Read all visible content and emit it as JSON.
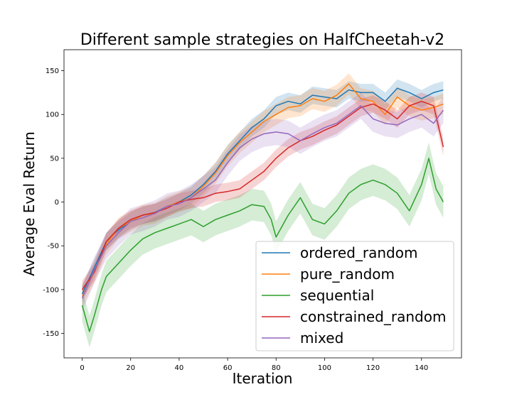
{
  "chart_data": {
    "type": "line",
    "title": "Different sample strategies on HalfCheetah-v2",
    "xlabel": "Iteration",
    "ylabel": "Average Eval Return",
    "xlim": [
      -7.5,
      156.5
    ],
    "ylim": [
      -178,
      174
    ],
    "xticks": [
      0,
      20,
      40,
      60,
      80,
      100,
      120,
      140
    ],
    "yticks": [
      -150,
      -100,
      -50,
      0,
      50,
      100,
      150
    ],
    "grid": false,
    "legend_position": "lower-right",
    "colors": {
      "ordered_random": "#1f77b4",
      "pure_random": "#ff7f0e",
      "sequential": "#2ca02c",
      "constrained_random": "#d62728",
      "mixed": "#9467bd"
    },
    "series": [
      {
        "name": "ordered_random",
        "color": "#1f77b4",
        "x": [
          0,
          5,
          10,
          15,
          20,
          25,
          30,
          35,
          40,
          45,
          50,
          55,
          60,
          65,
          70,
          75,
          80,
          85,
          90,
          95,
          100,
          105,
          110,
          115,
          120,
          125,
          130,
          135,
          140,
          145,
          149
        ],
        "y": [
          -105,
          -75,
          -45,
          -32,
          -22,
          -15,
          -12,
          -5,
          0,
          8,
          20,
          35,
          55,
          70,
          85,
          95,
          110,
          115,
          112,
          122,
          120,
          118,
          128,
          125,
          125,
          115,
          130,
          125,
          118,
          125,
          128
        ],
        "band": 10
      },
      {
        "name": "pure_random",
        "color": "#ff7f0e",
        "x": [
          0,
          5,
          10,
          15,
          20,
          25,
          30,
          35,
          40,
          45,
          50,
          55,
          60,
          65,
          70,
          75,
          80,
          85,
          90,
          95,
          100,
          105,
          110,
          115,
          120,
          125,
          130,
          135,
          140,
          145,
          149
        ],
        "y": [
          -108,
          -80,
          -48,
          -30,
          -22,
          -15,
          -13,
          -5,
          0,
          5,
          18,
          33,
          53,
          68,
          80,
          92,
          100,
          108,
          110,
          118,
          115,
          122,
          135,
          118,
          115,
          100,
          120,
          110,
          105,
          108,
          112
        ],
        "band": 12
      },
      {
        "name": "sequential",
        "color": "#2ca02c",
        "x": [
          0,
          3,
          5,
          8,
          10,
          15,
          20,
          25,
          30,
          35,
          40,
          45,
          50,
          55,
          60,
          65,
          70,
          75,
          78,
          80,
          82,
          85,
          90,
          95,
          100,
          105,
          110,
          115,
          120,
          125,
          130,
          135,
          140,
          143,
          146,
          149
        ],
        "y": [
          -118,
          -148,
          -130,
          -100,
          -85,
          -70,
          -55,
          -42,
          -35,
          -30,
          -25,
          -20,
          -28,
          -20,
          -15,
          -10,
          -3,
          -5,
          -20,
          -40,
          -30,
          -15,
          5,
          -20,
          -25,
          -10,
          10,
          20,
          25,
          20,
          10,
          -10,
          20,
          50,
          15,
          0
        ],
        "band": 18
      },
      {
        "name": "constrained_random",
        "color": "#d62728",
        "x": [
          0,
          5,
          10,
          15,
          20,
          25,
          30,
          35,
          40,
          45,
          50,
          55,
          60,
          65,
          70,
          75,
          80,
          85,
          90,
          95,
          100,
          105,
          110,
          115,
          120,
          125,
          130,
          135,
          140,
          145,
          149
        ],
        "y": [
          -100,
          -80,
          -45,
          -30,
          -20,
          -15,
          -12,
          -7,
          0,
          3,
          5,
          10,
          12,
          15,
          25,
          35,
          50,
          62,
          70,
          75,
          82,
          88,
          98,
          108,
          112,
          105,
          95,
          110,
          115,
          110,
          63
        ],
        "band": 10
      },
      {
        "name": "mixed",
        "color": "#9467bd",
        "x": [
          0,
          5,
          10,
          15,
          20,
          25,
          30,
          35,
          40,
          45,
          50,
          55,
          60,
          65,
          70,
          75,
          80,
          85,
          90,
          95,
          100,
          105,
          110,
          115,
          120,
          125,
          130,
          135,
          140,
          145,
          149
        ],
        "y": [
          -110,
          -78,
          -50,
          -35,
          -22,
          -18,
          -13,
          -5,
          -2,
          5,
          15,
          25,
          45,
          62,
          72,
          78,
          80,
          78,
          70,
          78,
          85,
          90,
          100,
          110,
          95,
          90,
          88,
          95,
          100,
          90,
          105
        ],
        "band": 15
      }
    ]
  }
}
